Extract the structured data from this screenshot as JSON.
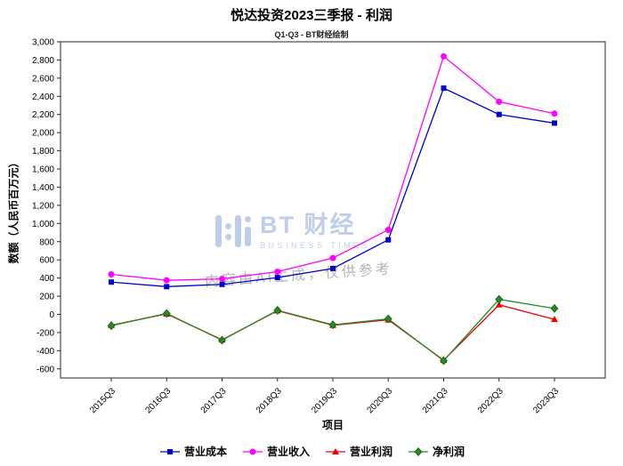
{
  "title": "悦达投资2023三季报 - 利润",
  "subtitle": "Q1-Q3 - BT财经绘制",
  "watermark": {
    "brand": "BT 财经",
    "brand_sub": "BUSINESS TIMES",
    "disclaimer": "内容由AI生成，仅供参考"
  },
  "chart_data": {
    "type": "line",
    "title": "悦达投资2023三季报 - 利润",
    "subtitle": "Q1-Q3 - BT财经绘制",
    "xlabel": "项目",
    "ylabel": "数额（人民币百万元）",
    "ylim": [
      -700,
      3000
    ],
    "yticks": {
      "min": -600,
      "max": 3000,
      "step": 200
    },
    "grid": false,
    "legend_position": "bottom",
    "categories": [
      "2015Q3",
      "2016Q3",
      "2017Q3",
      "2018Q3",
      "2019Q3",
      "2020Q3",
      "2021Q3",
      "2022Q3",
      "2023Q3"
    ],
    "series": [
      {
        "id": "operating-cost",
        "name": "营业成本",
        "marker": "square",
        "color": "#0000cd",
        "values": [
          355,
          305,
          330,
          405,
          505,
          820,
          2490,
          2200,
          2105
        ]
      },
      {
        "id": "operating-revenue",
        "name": "营业收入",
        "marker": "circle",
        "color": "#ff00ff",
        "values": [
          440,
          375,
          390,
          470,
          620,
          930,
          2840,
          2340,
          2210
        ]
      },
      {
        "id": "operating-profit",
        "name": "营业利润",
        "marker": "triangle",
        "color": "#ee0000",
        "values": [
          -120,
          5,
          -280,
          40,
          -120,
          -60,
          -505,
          105,
          -55
        ]
      },
      {
        "id": "net-profit",
        "name": "净利润",
        "marker": "diamond",
        "color": "#228b22",
        "values": [
          -125,
          10,
          -285,
          45,
          -115,
          -50,
          -510,
          165,
          65
        ]
      }
    ]
  }
}
